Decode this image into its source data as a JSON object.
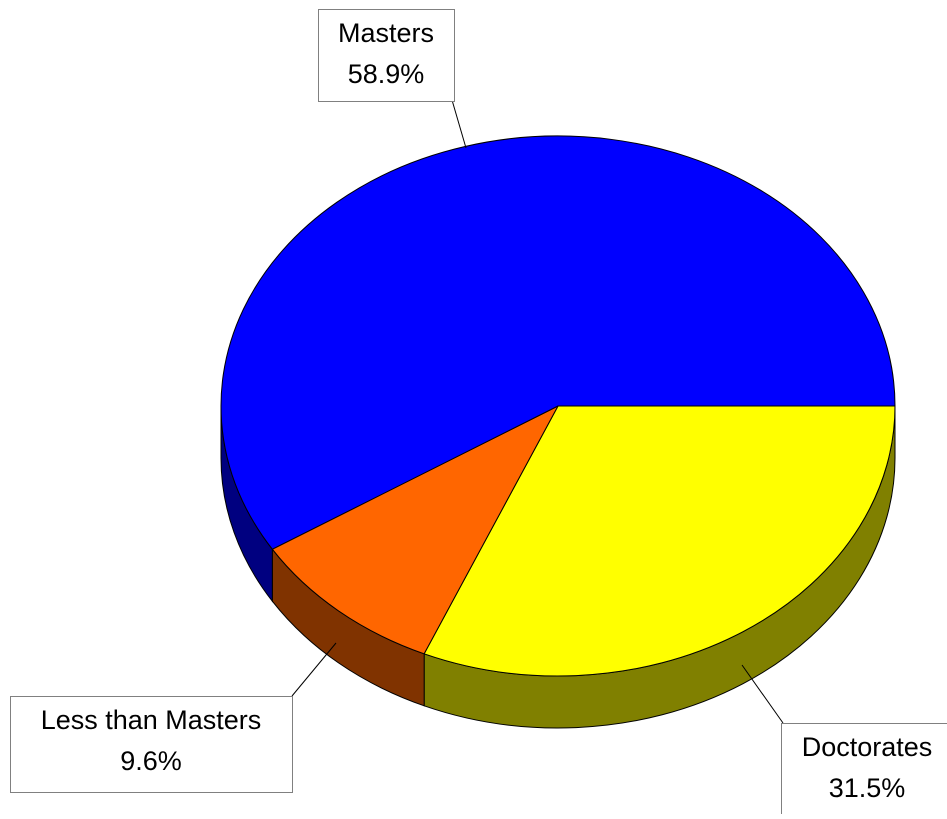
{
  "chart_data": {
    "type": "pie",
    "style": "3d",
    "title": "",
    "slices": [
      {
        "label": "Doctorates",
        "value": 31.5,
        "value_label": "31.5%",
        "color": "#ffff00",
        "side_color": "#808000"
      },
      {
        "label": "Less than Masters",
        "value": 9.6,
        "value_label": "9.6%",
        "color": "#ff6600",
        "side_color": "#803300"
      },
      {
        "label": "Masters",
        "value": 58.9,
        "value_label": "58.9%",
        "color": "#0000ff",
        "side_color": "#000080"
      }
    ]
  }
}
